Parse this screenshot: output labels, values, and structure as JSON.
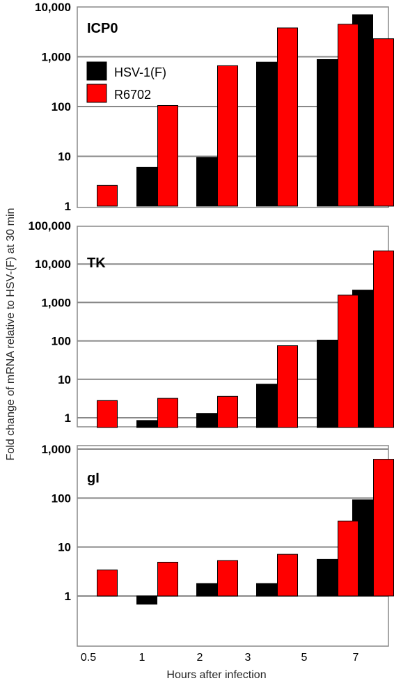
{
  "chart_data": [
    {
      "type": "bar",
      "title": "ICP0",
      "scale": "log",
      "categories": [
        "0.5",
        "1",
        "2",
        "3",
        "5",
        "7"
      ],
      "y_ticks": [
        1,
        10,
        100,
        1000,
        10000
      ],
      "y_tick_labels": [
        "1",
        "10",
        "100",
        "1,000",
        "10,000"
      ],
      "ylim": [
        1,
        10000
      ],
      "series": [
        {
          "name": "HSV-1(F)",
          "color": "#000000",
          "values": [
            null,
            6,
            9.5,
            780,
            880,
            7000
          ]
        },
        {
          "name": "R6702",
          "color": "#ff0000",
          "values": [
            2.6,
            105,
            660,
            3800,
            4500,
            2300
          ]
        }
      ]
    },
    {
      "type": "bar",
      "title": "TK",
      "scale": "log",
      "categories": [
        "0.5",
        "1",
        "2",
        "3",
        "5",
        "7"
      ],
      "y_ticks": [
        1,
        10,
        100,
        1000,
        10000,
        100000
      ],
      "y_tick_labels": [
        "1",
        "10",
        "100",
        "1,000",
        "10,000",
        "100,000"
      ],
      "ylim": [
        0.6,
        100000
      ],
      "series": [
        {
          "name": "HSV-1(F)",
          "color": "#000000",
          "values": [
            null,
            0.85,
            1.3,
            7.5,
            105,
            2100
          ]
        },
        {
          "name": "R6702",
          "color": "#ff0000",
          "values": [
            2.8,
            3.2,
            3.6,
            75,
            1550,
            22000
          ]
        }
      ]
    },
    {
      "type": "bar",
      "title": "gI",
      "scale": "log",
      "categories": [
        "0.5",
        "1",
        "2",
        "3",
        "5",
        "7"
      ],
      "y_ticks": [
        1,
        10,
        100,
        1000
      ],
      "y_tick_labels": [
        "1",
        "10",
        "100",
        "1,000"
      ],
      "ylim": [
        0.1,
        1000
      ],
      "series": [
        {
          "name": "HSV-1(F)",
          "color": "#000000",
          "values": [
            null,
            0.68,
            1.8,
            1.8,
            5.6,
            92
          ]
        },
        {
          "name": "R6702",
          "color": "#ff0000",
          "values": [
            3.4,
            4.9,
            5.3,
            7.1,
            34,
            620
          ]
        }
      ]
    }
  ],
  "legend": [
    {
      "label": "HSV-1(F)",
      "color": "#000000"
    },
    {
      "label": "R6702",
      "color": "#ff0000"
    }
  ],
  "ylabel": "Fold change of mRNA relative to HSV-(F) at 30 min",
  "xlabel": "Hours after infection",
  "x_tick_labels": [
    "0.5",
    "1",
    "2",
    "3",
    "5",
    "7"
  ]
}
